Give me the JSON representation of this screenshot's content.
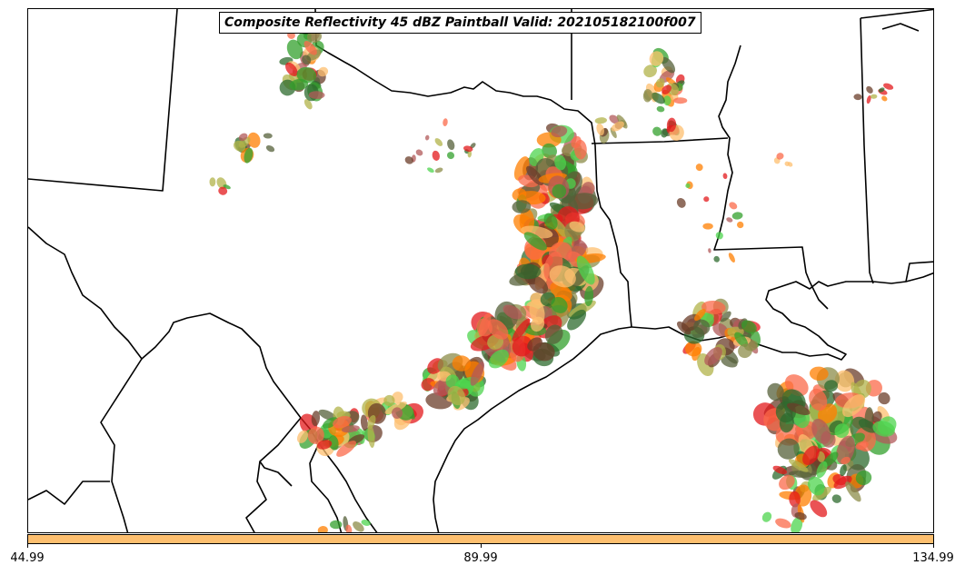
{
  "title": "Composite Reflectivity 45 dBZ Paintball Valid: 202105182100f007",
  "colorbar": {
    "color": "#fdbf6f",
    "ticks": [
      "44.99",
      "89.99",
      "134.99"
    ]
  },
  "member_colors": [
    "#e31a1c",
    "#ff7f00",
    "#fdbf6f",
    "#33a02c",
    "#4ed44e",
    "#b2b34a",
    "#6b3d2a",
    "#b15a5a",
    "#55603a",
    "#8c8c4a",
    "#fb6a4a",
    "#2d6b2d"
  ]
}
